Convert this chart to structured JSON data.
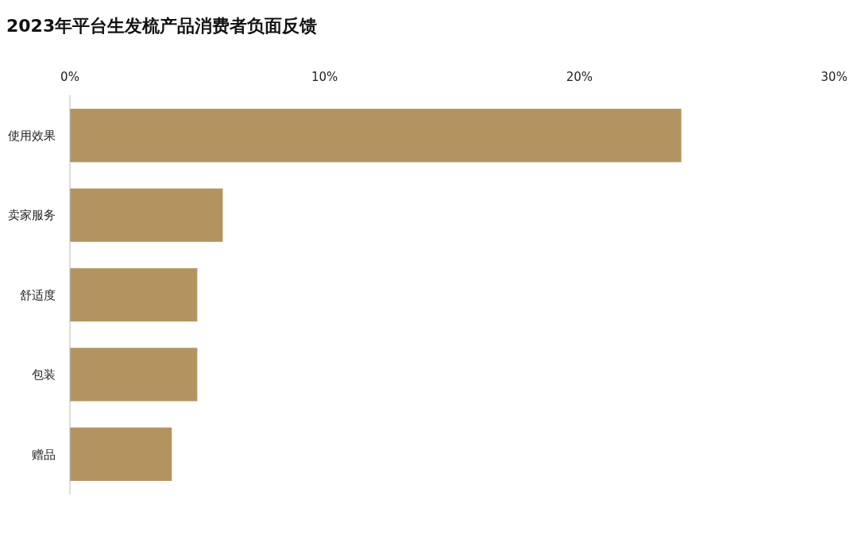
{
  "chart_data": {
    "type": "bar",
    "orientation": "horizontal",
    "title": "2023年平台生发梳产品消费者负面反馈",
    "categories": [
      "使用效果",
      "卖家服务",
      "舒适度",
      "包装",
      "赠品"
    ],
    "values": [
      24,
      6,
      5,
      5,
      4
    ],
    "color": "#b39461",
    "xlim": [
      0,
      30
    ],
    "xticks": [
      {
        "value": 0,
        "label": "0%"
      },
      {
        "value": 10,
        "label": "10%"
      },
      {
        "value": 20,
        "label": "20%"
      },
      {
        "value": 30,
        "label": "30%"
      }
    ],
    "grid": false
  }
}
